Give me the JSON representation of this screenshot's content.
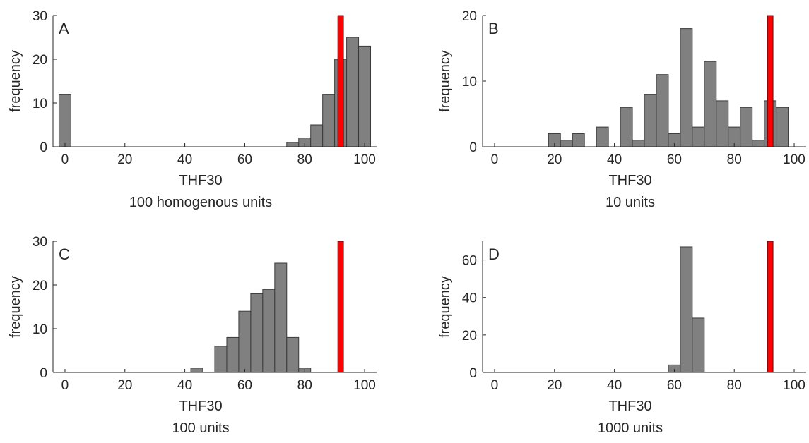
{
  "figure": {
    "background": "#ffffff",
    "bar_color": "#808080",
    "bar_edge_color": "#3a3a3a",
    "highlight_color": "#ff0000"
  },
  "chart_data": [
    {
      "type": "bar",
      "panel": "A",
      "title": "",
      "xlabel": "THF30",
      "subtitle": "100 homogenous units",
      "ylabel": "frequency",
      "xlim": [
        -4,
        104
      ],
      "ylim": [
        0,
        30
      ],
      "xticks": [
        0,
        20,
        40,
        60,
        80,
        100
      ],
      "yticks": [
        0,
        10,
        20,
        30
      ],
      "bin_width": 4,
      "x": [
        0,
        76,
        80,
        84,
        88,
        92,
        96,
        100
      ],
      "values": [
        12,
        1,
        2,
        5,
        12,
        20,
        25,
        23
      ],
      "highlight_x": 92,
      "highlight_value": 30,
      "grid": false
    },
    {
      "type": "bar",
      "panel": "B",
      "title": "",
      "xlabel": "THF30",
      "subtitle": "10 units",
      "ylabel": "frequency",
      "xlim": [
        -4,
        104
      ],
      "ylim": [
        0,
        20
      ],
      "xticks": [
        0,
        20,
        40,
        60,
        80,
        100
      ],
      "yticks": [
        0,
        10,
        20
      ],
      "bin_width": 4,
      "x": [
        20,
        24,
        28,
        36,
        44,
        48,
        52,
        56,
        60,
        64,
        68,
        72,
        76,
        80,
        84,
        88,
        92,
        96
      ],
      "values": [
        2,
        1,
        2,
        3,
        6,
        1,
        8,
        11,
        2,
        18,
        3,
        13,
        7,
        3,
        6,
        1,
        7,
        6
      ],
      "highlight_x": 92,
      "highlight_value": 20,
      "grid": false
    },
    {
      "type": "bar",
      "panel": "C",
      "title": "",
      "xlabel": "THF30",
      "subtitle": "100 units",
      "ylabel": "frequency",
      "xlim": [
        -4,
        104
      ],
      "ylim": [
        0,
        30
      ],
      "xticks": [
        0,
        20,
        40,
        60,
        80,
        100
      ],
      "yticks": [
        0,
        10,
        20,
        30
      ],
      "bin_width": 4,
      "x": [
        44,
        52,
        56,
        60,
        64,
        68,
        72,
        76,
        80
      ],
      "values": [
        1,
        6,
        8,
        14,
        18,
        19,
        25,
        8,
        1
      ],
      "highlight_x": 92,
      "highlight_value": 30,
      "grid": false
    },
    {
      "type": "bar",
      "panel": "D",
      "title": "",
      "xlabel": "THF30",
      "subtitle": "1000 units",
      "ylabel": "frequency",
      "xlim": [
        -4,
        104
      ],
      "ylim": [
        0,
        70
      ],
      "xticks": [
        0,
        20,
        40,
        60,
        80,
        100
      ],
      "yticks": [
        0,
        20,
        40,
        60
      ],
      "bin_width": 4,
      "x": [
        60,
        64,
        68
      ],
      "values": [
        4,
        67,
        29
      ],
      "highlight_x": 92,
      "highlight_value": 70,
      "grid": false
    }
  ]
}
